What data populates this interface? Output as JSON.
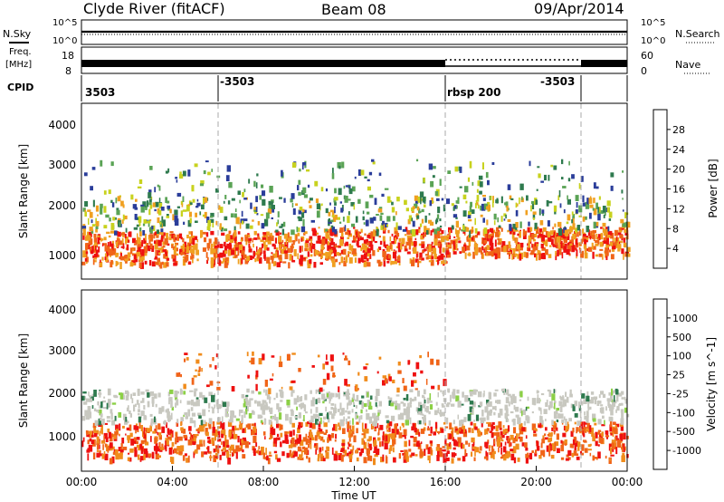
{
  "header": {
    "station": "Clyde River (fitACF)",
    "beam": "Beam 08",
    "date": "09/Apr/2014"
  },
  "strip_labels": {
    "nsky": "N.Sky",
    "freq_line1": "Freq.",
    "freq_line2": "[MHz]",
    "cpid": "CPID",
    "nsearch": "N.Search",
    "nave": "Nave"
  },
  "strip_ticks": {
    "noise_left_top": "10^5",
    "noise_left_bottom": "10^0",
    "noise_right_top": "10^5",
    "noise_right_bottom": "10^0",
    "freq_left_top": "18",
    "freq_left_bottom": "8",
    "nave_right_top": "60",
    "nave_right_bottom": "0"
  },
  "cpid": {
    "labels": [
      "3503",
      "-3503",
      "rbsp 200",
      "-3503"
    ],
    "change_times_h": [
      6.0,
      16.0,
      22.0
    ]
  },
  "colors": {
    "power_colorbar": [
      "#0000ee",
      "#2a3d9a",
      "#2e7a4e",
      "#5aa355",
      "#c8d21e",
      "#f0a020",
      "#f06418",
      "#ee1010"
    ],
    "velocity_colorbar": [
      "#ee1010",
      "#f06418",
      "#f08c1c",
      "#c8c8c0",
      "#c8c8c0",
      "#8cd046",
      "#2e7a4e",
      "#2a3d9a",
      "#1a3ab8"
    ]
  },
  "chart_data": [
    {
      "type": "heatmap",
      "title": "Power",
      "xlabel": "",
      "ylabel": "Slant Range [km]",
      "xlim_h": [
        0,
        24
      ],
      "ylim_km": [
        180,
        4600
      ],
      "y_ticks": [
        "1000",
        "2000",
        "3000",
        "4000"
      ],
      "colorbar_label": "Power [dB]",
      "colorbar_ticks": [
        "4",
        "8",
        "12",
        "16",
        "20",
        "24",
        "28"
      ],
      "colorbar_range": [
        0,
        32
      ],
      "echo_bands": [
        {
          "start_h": 0.0,
          "end_h": 10.0,
          "range_km": [
            600,
            1400
          ],
          "level": "high"
        },
        {
          "start_h": 10.0,
          "end_h": 16.0,
          "range_km": [
            600,
            1500
          ],
          "level": "high"
        },
        {
          "start_h": 16.0,
          "end_h": 24.0,
          "range_km": [
            800,
            1500
          ],
          "level": "high"
        },
        {
          "start_h": 0.0,
          "end_h": 24.0,
          "range_km": [
            1400,
            2300
          ],
          "level": "medium"
        },
        {
          "start_h": 0.0,
          "end_h": 24.0,
          "range_km": [
            2300,
            3200
          ],
          "level": "low"
        }
      ]
    },
    {
      "type": "heatmap",
      "title": "Velocity",
      "xlabel": "Time UT",
      "ylabel": "Slant Range [km]",
      "xlim_h": [
        0,
        24
      ],
      "ylim_km": [
        180,
        4600
      ],
      "x_ticks": [
        "00:00",
        "04:00",
        "08:00",
        "12:00",
        "16:00",
        "20:00",
        "00:00"
      ],
      "y_ticks": [
        "1000",
        "2000",
        "3000",
        "4000"
      ],
      "colorbar_label": "Velocity [m s^-1]",
      "colorbar_ticks": [
        "-1000",
        "-500",
        "-100",
        "-25",
        "25",
        "100",
        "500",
        "1000"
      ],
      "echo_bands": [
        {
          "start_h": 0.0,
          "end_h": 24.0,
          "range_km": [
            500,
            1400
          ],
          "level": "negative"
        },
        {
          "start_h": 0.0,
          "end_h": 24.0,
          "range_km": [
            1400,
            2200
          ],
          "level": "near-zero"
        },
        {
          "start_h": 4.0,
          "end_h": 16.0,
          "range_km": [
            2200,
            3100
          ],
          "level": "negative"
        }
      ]
    }
  ]
}
